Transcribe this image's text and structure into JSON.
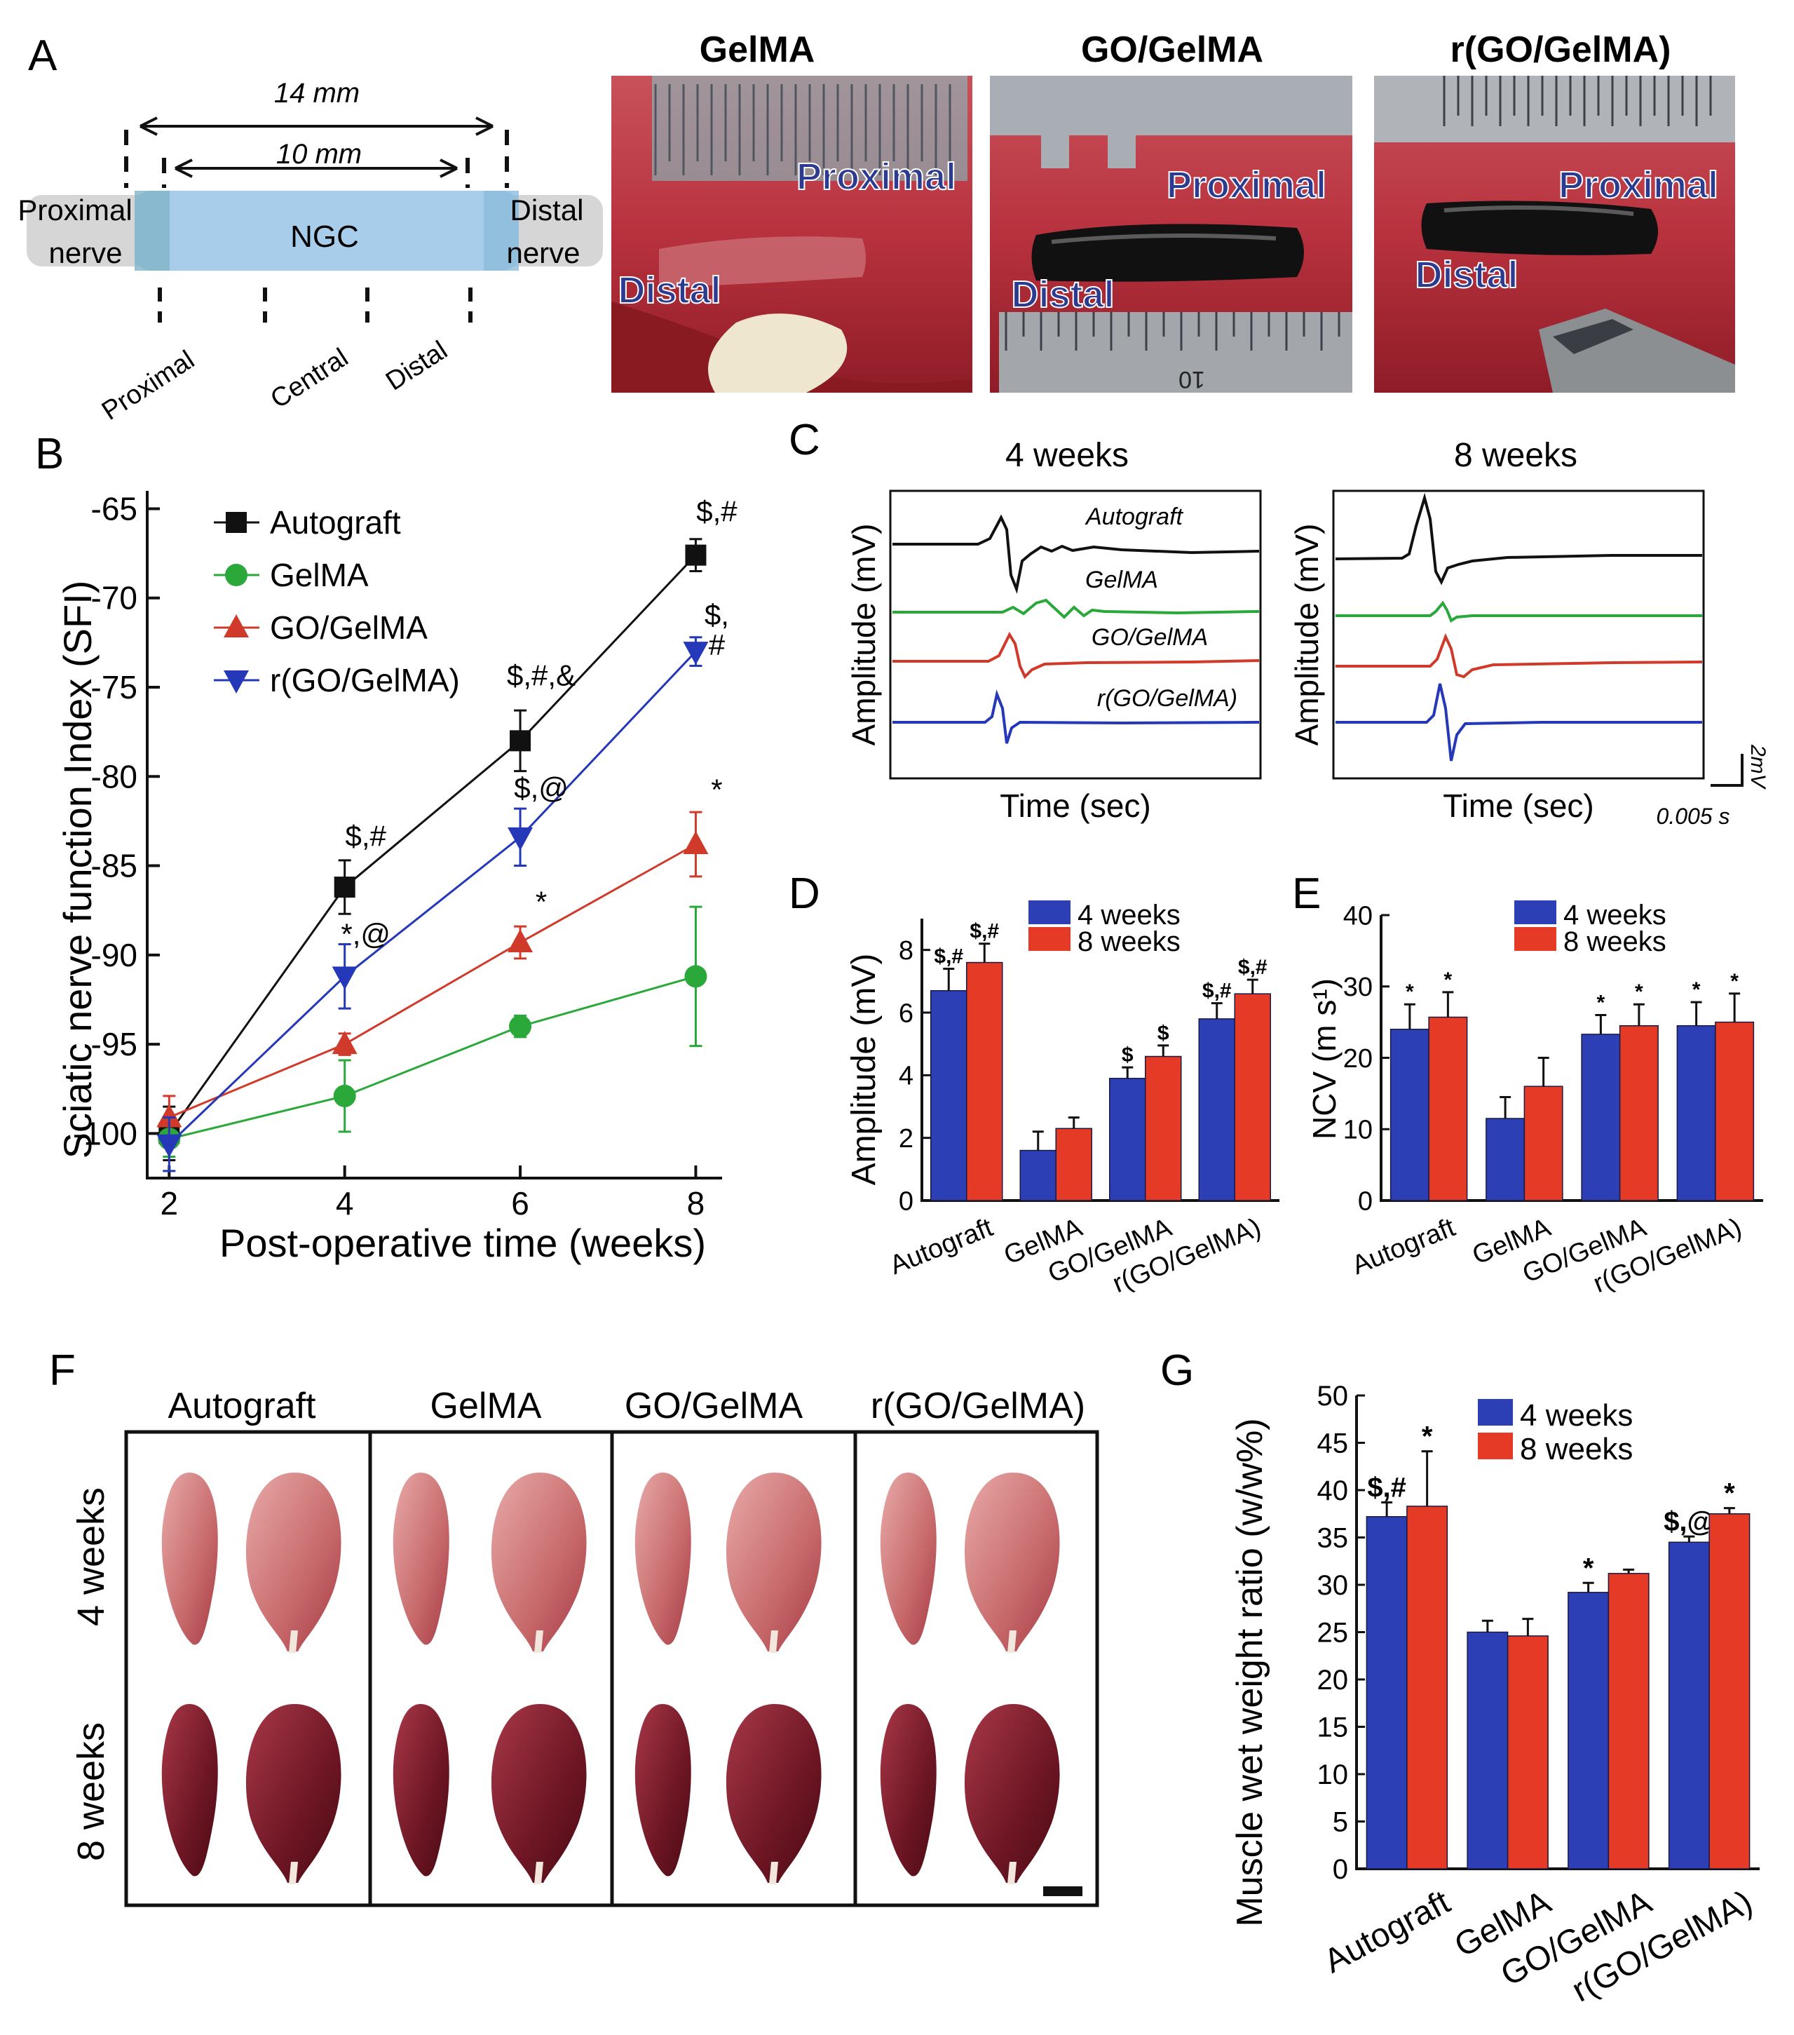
{
  "panel_letters": {
    "A": "A",
    "B": "B",
    "C": "C",
    "D": "D",
    "E": "E",
    "F": "F",
    "G": "G"
  },
  "colors": {
    "black": "#111111",
    "green": "#2aa83a",
    "red": "#d03a2a",
    "blue": "#2438b8",
    "bar_blue": "#2c3fb5",
    "bar_red": "#e53a26",
    "ngc": "#a8cdea",
    "nerve": "#d6d6d6"
  },
  "panel_a": {
    "dim_outer": "14 mm",
    "dim_inner": "10 mm",
    "left_label": [
      "Proximal",
      "nerve"
    ],
    "ngc_label": "NGC",
    "right_label": [
      "Distal",
      "nerve"
    ],
    "segments": [
      "Proximal",
      "Central",
      "Distal"
    ],
    "photos": [
      {
        "title": "GelMA",
        "labels": [
          "Proximal",
          "Distal"
        ]
      },
      {
        "title": "GO/GelMA",
        "labels": [
          "Proximal",
          "Distal"
        ],
        "ruler_text": "10"
      },
      {
        "title": "r(GO/GelMA)",
        "labels": [
          "Proximal",
          "Distal"
        ]
      }
    ]
  },
  "panel_c": {
    "titles": [
      "4 weeks",
      "8 weeks"
    ],
    "ylabel": "Amplitude (mV)",
    "xlabel": "Time (sec)",
    "traces": [
      "Autograft",
      "GelMA",
      "GO/GelMA",
      "r(GO/GelMA)"
    ],
    "scale_v": "2mV",
    "scale_t": "0.005 s"
  },
  "panel_f": {
    "groups": [
      "Autograft",
      "GelMA",
      "GO/GelMA",
      "r(GO/GelMA)"
    ],
    "rows": [
      "4 weeks",
      "8 weeks"
    ]
  },
  "chart_data": [
    {
      "panel": "B",
      "type": "line",
      "xlabel": "Post-operative time (weeks)",
      "ylabel": "Sciatic nerve function Index (SFI)",
      "x": [
        2,
        4,
        6,
        8
      ],
      "xticks": [
        2,
        4,
        6,
        8
      ],
      "yticks": [
        -100,
        -95,
        -90,
        -85,
        -80,
        -75,
        -70,
        -65
      ],
      "xlim": [
        1.75,
        8.3
      ],
      "ylim": [
        -102.5,
        -64
      ],
      "series": [
        {
          "name": "Autograft",
          "marker": "square",
          "color": "#111111",
          "values": [
            -100.0,
            -86.2,
            -78.0,
            -67.6
          ],
          "errors": [
            1.5,
            1.5,
            1.7,
            0.9
          ]
        },
        {
          "name": "GelMA",
          "marker": "circle",
          "color": "#2aa83a",
          "values": [
            -100.3,
            -97.9,
            -94.0,
            -91.2
          ],
          "errors": [
            1.0,
            2.0,
            0.6,
            3.9
          ]
        },
        {
          "name": "GO/GelMA",
          "marker": "triangle-up",
          "color": "#d03a2a",
          "values": [
            -99.1,
            -95.0,
            -89.3,
            -83.8
          ],
          "errors": [
            1.2,
            0.6,
            0.9,
            1.8
          ]
        },
        {
          "name": "r(GO/GelMA)",
          "marker": "triangle-down",
          "color": "#2438b8",
          "values": [
            -100.6,
            -91.2,
            -83.4,
            -73.0
          ],
          "errors": [
            1.5,
            1.8,
            1.6,
            0.8
          ]
        }
      ],
      "annotations": [
        {
          "text": "$,#",
          "x": 8,
          "y": -65.7
        },
        {
          "text": "$,",
          "x": 8,
          "y": -71.5
        },
        {
          "text": "#",
          "x": 8,
          "y": -73.2
        },
        {
          "text": "$,#,&",
          "x": 6,
          "y": -74.9
        },
        {
          "text": "$,@",
          "x": 6,
          "y": -81.2
        },
        {
          "text": "*",
          "x": 8,
          "y": -81.3
        },
        {
          "text": "$,#",
          "x": 4,
          "y": -83.9
        },
        {
          "text": "*",
          "x": 6,
          "y": -87.6
        },
        {
          "text": "*,@",
          "x": 4,
          "y": -89.4
        }
      ]
    },
    {
      "panel": "D",
      "type": "bar",
      "ylabel": "Amplitude (mV)",
      "categories": [
        "Autograft",
        "GelMA",
        "GO/GelMA",
        "r(GO/GelMA)"
      ],
      "series": [
        {
          "name": "4 weeks",
          "color": "#2c3fb5",
          "values": [
            6.7,
            1.6,
            3.9,
            5.8
          ],
          "errors": [
            0.7,
            0.6,
            0.35,
            0.5
          ]
        },
        {
          "name": "8 weeks",
          "color": "#e53a26",
          "values": [
            7.6,
            2.3,
            4.6,
            6.6
          ],
          "errors": [
            0.6,
            0.35,
            0.35,
            0.45
          ]
        }
      ],
      "ylim": [
        0,
        9
      ],
      "yticks": [
        0,
        2,
        4,
        6,
        8
      ],
      "annotations": [
        [
          "$,#",
          "$,#"
        ],
        [
          "",
          ""
        ],
        [
          "$",
          "$"
        ],
        [
          "$,#",
          "$,#"
        ]
      ]
    },
    {
      "panel": "E",
      "type": "bar",
      "ylabel": "NCV (m s¹)",
      "categories": [
        "Autograft",
        "GelMA",
        "GO/GelMA",
        "r(GO/GelMA)"
      ],
      "series": [
        {
          "name": "4 weeks",
          "color": "#2c3fb5",
          "values": [
            24.0,
            11.5,
            23.3,
            24.5
          ],
          "errors": [
            3.5,
            3.0,
            2.7,
            3.3
          ]
        },
        {
          "name": "8 weeks",
          "color": "#e53a26",
          "values": [
            25.7,
            16.0,
            24.5,
            25.0
          ],
          "errors": [
            3.5,
            4.0,
            3.0,
            4.0
          ]
        }
      ],
      "ylim": [
        0,
        40
      ],
      "yticks": [
        0,
        10,
        20,
        30,
        40
      ],
      "annotations": [
        [
          "*",
          "*"
        ],
        [
          "",
          ""
        ],
        [
          "*",
          "*"
        ],
        [
          "*",
          "*"
        ]
      ]
    },
    {
      "panel": "G",
      "type": "bar",
      "ylabel": "Muscle  wet weight ratio (w/w%)",
      "categories": [
        "Autograft",
        "GelMA",
        "GO/GelMA",
        "r(GO/GelMA)"
      ],
      "series": [
        {
          "name": "4 weeks",
          "color": "#2c3fb5",
          "values": [
            37.2,
            25.0,
            29.2,
            34.5
          ],
          "errors": [
            1.5,
            1.2,
            1.0,
            0.6
          ]
        },
        {
          "name": "8 weeks",
          "color": "#e53a26",
          "values": [
            38.3,
            24.6,
            31.2,
            37.5
          ],
          "errors": [
            5.8,
            1.8,
            0.4,
            0.6
          ]
        }
      ],
      "ylim": [
        0,
        50
      ],
      "yticks": [
        0,
        5,
        10,
        15,
        20,
        25,
        30,
        35,
        40,
        45,
        50
      ],
      "annotations": [
        [
          "$,#",
          "*"
        ],
        [
          "",
          ""
        ],
        [
          "*",
          ""
        ],
        [
          "$,@",
          "*"
        ]
      ]
    }
  ]
}
